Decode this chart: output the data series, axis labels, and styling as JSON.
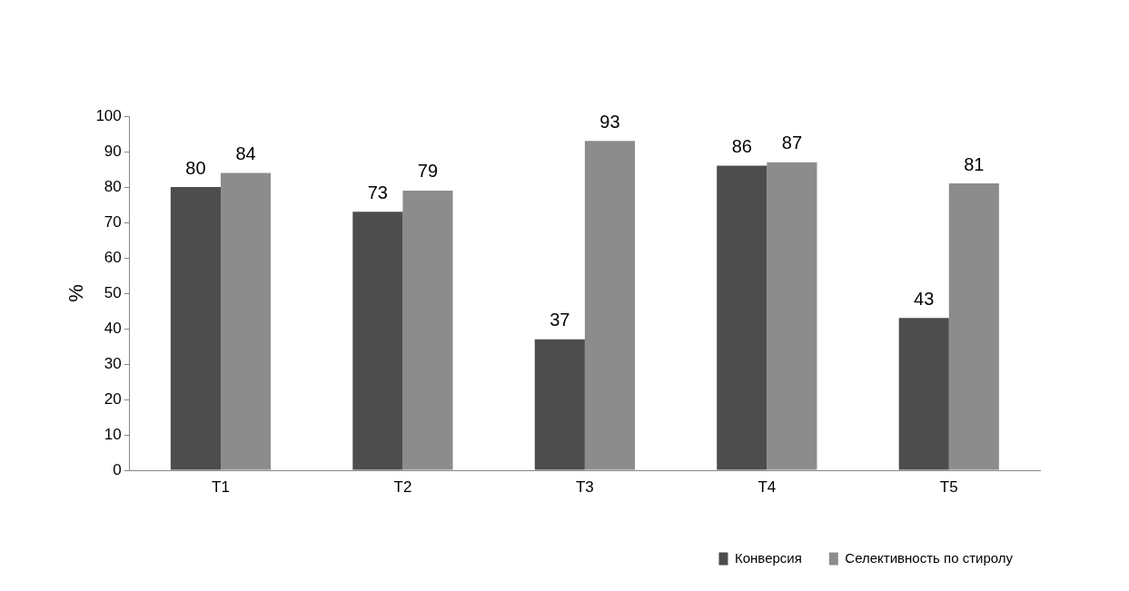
{
  "chart_data": {
    "type": "bar",
    "ylabel": "%",
    "categories": [
      "T1",
      "T2",
      "T3",
      "T4",
      "T5"
    ],
    "series": [
      {
        "name": "Конверсия",
        "color": "#4d4d4d",
        "values": [
          80,
          73,
          37,
          86,
          43
        ]
      },
      {
        "name": "Селективность по стиролу",
        "color": "#8c8c8c",
        "values": [
          84,
          79,
          93,
          87,
          81
        ]
      }
    ],
    "ylim": [
      0,
      100
    ],
    "yticks": [
      0,
      10,
      20,
      30,
      40,
      50,
      60,
      70,
      80,
      90,
      100
    ],
    "grid": false,
    "legend": "bottom right",
    "data_labels": true
  }
}
